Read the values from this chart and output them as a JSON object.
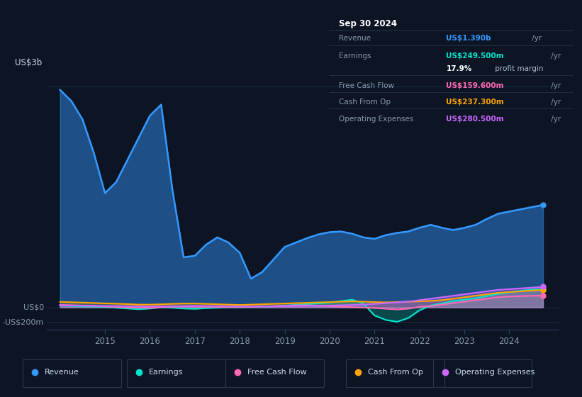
{
  "bg_color": "#0d1525",
  "plot_bg_color": "#0d1525",
  "title_box_bg": "#080e18",
  "title_box_border": "#2a3a4a",
  "grid_color": "#1a2d45",
  "title_box": {
    "date": "Sep 30 2024",
    "rows": [
      {
        "label": "Revenue",
        "value": "US$1.390b",
        "suffix": " /yr",
        "value_color": "#3399ff"
      },
      {
        "label": "Earnings",
        "value": "US$249.500m",
        "suffix": " /yr",
        "value_color": "#00e5cc"
      },
      {
        "label": "",
        "value": "17.9%",
        "suffix": " profit margin",
        "value_color": "#ffffff"
      },
      {
        "label": "Free Cash Flow",
        "value": "US$159.600m",
        "suffix": " /yr",
        "value_color": "#ff69b4"
      },
      {
        "label": "Cash From Op",
        "value": "US$237.300m",
        "suffix": " /yr",
        "value_color": "#ffa500"
      },
      {
        "label": "Operating Expenses",
        "value": "US$280.500m",
        "suffix": " /yr",
        "value_color": "#cc66ff"
      }
    ]
  },
  "ylabel_top": "US$3b",
  "ylabel_zero": "US$0",
  "ylabel_bottom": "-US$200m",
  "ylim_min": -300,
  "ylim_max": 3200,
  "legend": [
    {
      "label": "Revenue",
      "color": "#3399ff"
    },
    {
      "label": "Earnings",
      "color": "#00e5cc"
    },
    {
      "label": "Free Cash Flow",
      "color": "#ff69b4"
    },
    {
      "label": "Cash From Op",
      "color": "#ffa500"
    },
    {
      "label": "Operating Expenses",
      "color": "#cc66ff"
    }
  ],
  "series": {
    "x": [
      2014.0,
      2014.25,
      2014.5,
      2014.75,
      2015.0,
      2015.25,
      2015.5,
      2015.75,
      2016.0,
      2016.25,
      2016.5,
      2016.75,
      2017.0,
      2017.25,
      2017.5,
      2017.75,
      2018.0,
      2018.25,
      2018.5,
      2018.75,
      2019.0,
      2019.25,
      2019.5,
      2019.75,
      2020.0,
      2020.25,
      2020.5,
      2020.75,
      2021.0,
      2021.25,
      2021.5,
      2021.75,
      2022.0,
      2022.25,
      2022.5,
      2022.75,
      2023.0,
      2023.25,
      2023.5,
      2023.75,
      2024.0,
      2024.25,
      2024.5,
      2024.75
    ],
    "revenue": [
      2950,
      2800,
      2550,
      2100,
      1550,
      1700,
      2000,
      2300,
      2600,
      2750,
      1600,
      680,
      700,
      850,
      950,
      880,
      740,
      390,
      480,
      650,
      820,
      880,
      940,
      990,
      1020,
      1030,
      1000,
      950,
      930,
      980,
      1010,
      1030,
      1080,
      1120,
      1080,
      1050,
      1080,
      1120,
      1200,
      1270,
      1300,
      1330,
      1360,
      1390
    ],
    "earnings": [
      25,
      20,
      15,
      10,
      5,
      -5,
      -15,
      -25,
      -15,
      0,
      -5,
      -15,
      -20,
      -10,
      -5,
      0,
      0,
      5,
      10,
      15,
      25,
      35,
      45,
      55,
      65,
      85,
      105,
      55,
      -110,
      -170,
      -195,
      -145,
      -40,
      25,
      55,
      85,
      105,
      125,
      155,
      185,
      205,
      225,
      242,
      249
    ],
    "free_cash_flow": [
      35,
      30,
      25,
      20,
      12,
      6,
      0,
      -3,
      -8,
      3,
      8,
      12,
      12,
      8,
      5,
      5,
      5,
      8,
      12,
      18,
      22,
      28,
      28,
      22,
      18,
      8,
      3,
      -3,
      -8,
      -18,
      -28,
      -18,
      8,
      18,
      38,
      58,
      78,
      98,
      118,
      138,
      148,
      153,
      157,
      159
    ],
    "cash_from_op": [
      75,
      70,
      65,
      60,
      55,
      50,
      45,
      38,
      38,
      42,
      48,
      52,
      52,
      48,
      43,
      38,
      33,
      38,
      43,
      48,
      52,
      58,
      62,
      68,
      72,
      78,
      82,
      78,
      72,
      68,
      72,
      78,
      82,
      88,
      98,
      118,
      138,
      158,
      178,
      198,
      208,
      218,
      228,
      237
    ],
    "operating_expenses": [
      28,
      26,
      24,
      22,
      20,
      18,
      16,
      14,
      12,
      14,
      17,
      19,
      21,
      19,
      17,
      15,
      13,
      12,
      13,
      15,
      17,
      19,
      21,
      23,
      25,
      29,
      34,
      39,
      48,
      58,
      68,
      78,
      98,
      118,
      138,
      158,
      178,
      198,
      218,
      238,
      248,
      258,
      268,
      280
    ]
  }
}
